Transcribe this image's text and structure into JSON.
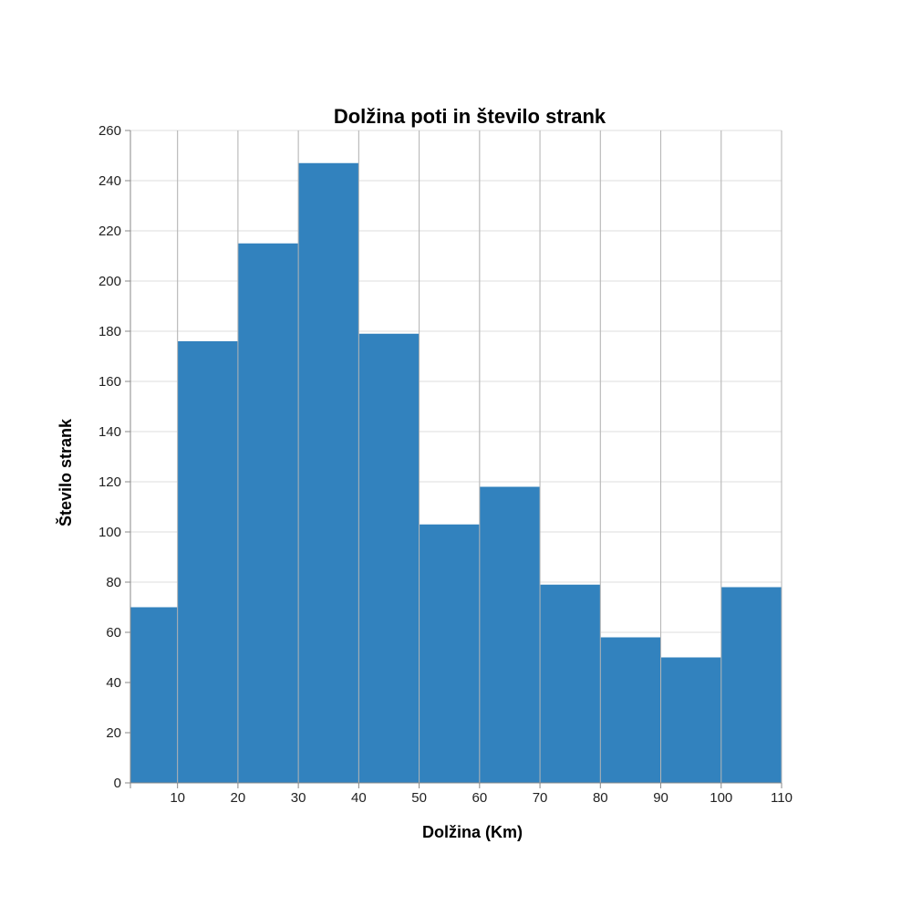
{
  "chart_data": {
    "type": "bar",
    "title": "Dolžina poti in število strank",
    "xlabel": "Dolžina (Km)",
    "ylabel": "Število strank",
    "x_ticks": [
      10,
      20,
      30,
      40,
      50,
      60,
      70,
      80,
      90,
      100,
      110
    ],
    "y_ticks": [
      0,
      20,
      40,
      60,
      80,
      100,
      120,
      140,
      160,
      180,
      200,
      220,
      240,
      260
    ],
    "xlim": [
      2.2,
      110
    ],
    "ylim": [
      0,
      260
    ],
    "bins": [
      {
        "x0": 2.2,
        "x1": 10,
        "value": 70
      },
      {
        "x0": 10,
        "x1": 20,
        "value": 176
      },
      {
        "x0": 20,
        "x1": 30,
        "value": 215
      },
      {
        "x0": 30,
        "x1": 40,
        "value": 247
      },
      {
        "x0": 40,
        "x1": 50,
        "value": 179
      },
      {
        "x0": 50,
        "x1": 60,
        "value": 103
      },
      {
        "x0": 60,
        "x1": 70,
        "value": 118
      },
      {
        "x0": 70,
        "x1": 80,
        "value": 79
      },
      {
        "x0": 80,
        "x1": 90,
        "value": 58
      },
      {
        "x0": 90,
        "x1": 100,
        "value": 50
      },
      {
        "x0": 100,
        "x1": 110,
        "value": 78
      }
    ],
    "bar_color": "#3282be",
    "grid": true
  }
}
